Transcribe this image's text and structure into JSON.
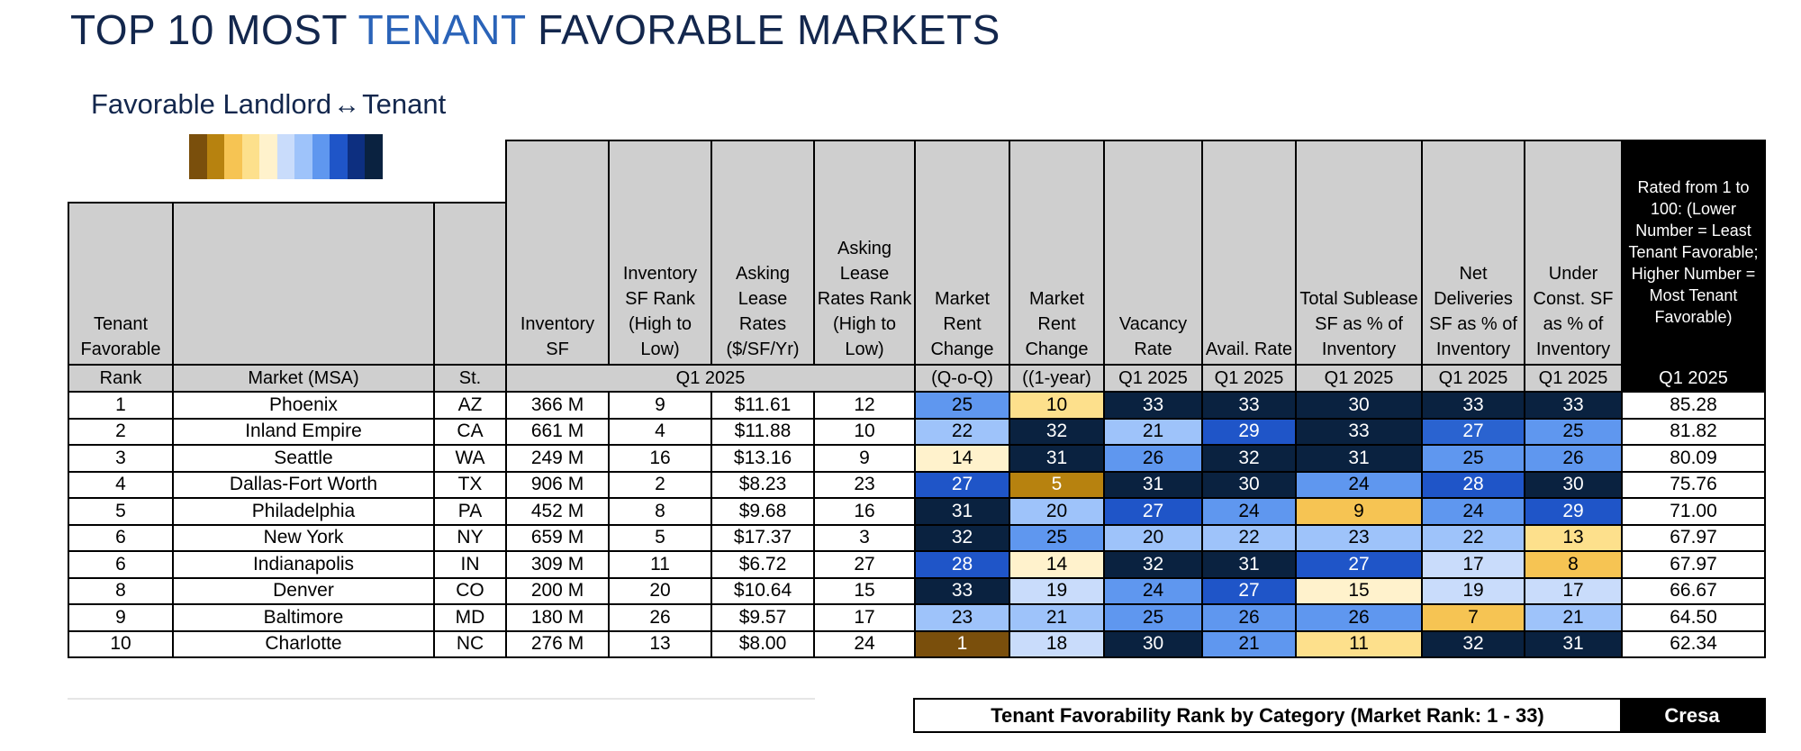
{
  "title": {
    "part1": "TOP 10 MOST ",
    "accent": "TENANT",
    "part2": " FAVORABLE MARKETS"
  },
  "legend": {
    "left": "Favorable Landlord",
    "arrow": "↔",
    "right": "Tenant",
    "scale_colors": [
      "#7a4f0c",
      "#b7820f",
      "#f6c453",
      "#fde08c",
      "#fff2cc",
      "#c9dcfb",
      "#9ec3fa",
      "#5f97ef",
      "#1f55c8",
      "#0d2f80",
      "#0a2240"
    ]
  },
  "colors": {
    "header_gray": "#cfcfcf",
    "header_black": "#000000",
    "title_navy": "#13274d",
    "title_accent": "#2a63b8"
  },
  "headers": {
    "rank": "Tenant Favorable",
    "rank_sub": "Rank",
    "market": "Market (MSA)",
    "state": "St.",
    "inventory": "Inventory SF",
    "inv_rank": "Inventory SF Rank (High to Low)",
    "asking": "Asking Lease Rates ($/SF/Yr)",
    "asking_rank": "Asking Lease Rates Rank (High to Low)",
    "rent_qoq": "Market Rent Change",
    "rent_yoy": "Market Rent Change",
    "vacancy": "Vacancy Rate",
    "avail": "Avail. Rate",
    "sublease": "Total Sublease SF as % of Inventory",
    "deliveries": "Net Deliveries SF as % of Inventory",
    "construction": "Under Const. SF as % of Inventory",
    "rated": "Rated from 1 to 100: (Lower Number = Least Tenant Favorable; Higher Number = Most Tenant Favorable)",
    "period_group": "Q1 2025",
    "qoq": "(Q-o-Q)",
    "yoy": "((1-year)",
    "q1": "Q1 2025"
  },
  "rows": [
    {
      "rank": "1",
      "market": "Phoenix",
      "st": "AZ",
      "inv": "366 M",
      "inv_rank": "9",
      "rate": "$11.61",
      "rate_rank": "12",
      "cells": [
        {
          "v": "25",
          "c": "#5f97ef",
          "t": "#000"
        },
        {
          "v": "10",
          "c": "#fde08c",
          "t": "#000"
        },
        {
          "v": "33",
          "c": "#0a2240",
          "t": "#fff"
        },
        {
          "v": "33",
          "c": "#0a2240",
          "t": "#fff"
        },
        {
          "v": "30",
          "c": "#0a2240",
          "t": "#fff"
        },
        {
          "v": "33",
          "c": "#0a2240",
          "t": "#fff"
        },
        {
          "v": "33",
          "c": "#0a2240",
          "t": "#fff"
        }
      ],
      "score": "85.28"
    },
    {
      "rank": "2",
      "market": "Inland Empire",
      "st": "CA",
      "inv": "661 M",
      "inv_rank": "4",
      "rate": "$11.88",
      "rate_rank": "10",
      "cells": [
        {
          "v": "22",
          "c": "#9ec3fa",
          "t": "#000"
        },
        {
          "v": "32",
          "c": "#0a2240",
          "t": "#fff"
        },
        {
          "v": "21",
          "c": "#9ec3fa",
          "t": "#000"
        },
        {
          "v": "29",
          "c": "#1f55c8",
          "t": "#fff"
        },
        {
          "v": "33",
          "c": "#0a2240",
          "t": "#fff"
        },
        {
          "v": "27",
          "c": "#2a63d0",
          "t": "#fff"
        },
        {
          "v": "25",
          "c": "#5f97ef",
          "t": "#000"
        }
      ],
      "score": "81.82"
    },
    {
      "rank": "3",
      "market": "Seattle",
      "st": "WA",
      "inv": "249 M",
      "inv_rank": "16",
      "rate": "$13.16",
      "rate_rank": "9",
      "cells": [
        {
          "v": "14",
          "c": "#fff2cc",
          "t": "#000"
        },
        {
          "v": "31",
          "c": "#0a2240",
          "t": "#fff"
        },
        {
          "v": "26",
          "c": "#5f97ef",
          "t": "#000"
        },
        {
          "v": "32",
          "c": "#0a2240",
          "t": "#fff"
        },
        {
          "v": "31",
          "c": "#0a2240",
          "t": "#fff"
        },
        {
          "v": "25",
          "c": "#5f97ef",
          "t": "#000"
        },
        {
          "v": "26",
          "c": "#5f97ef",
          "t": "#000"
        }
      ],
      "score": "80.09"
    },
    {
      "rank": "4",
      "market": "Dallas-Fort Worth",
      "st": "TX",
      "inv": "906 M",
      "inv_rank": "2",
      "rate": "$8.23",
      "rate_rank": "23",
      "cells": [
        {
          "v": "27",
          "c": "#1f55c8",
          "t": "#fff"
        },
        {
          "v": "5",
          "c": "#b7820f",
          "t": "#fff"
        },
        {
          "v": "31",
          "c": "#0a2240",
          "t": "#fff"
        },
        {
          "v": "30",
          "c": "#0a2240",
          "t": "#fff"
        },
        {
          "v": "24",
          "c": "#5f97ef",
          "t": "#000"
        },
        {
          "v": "28",
          "c": "#1f55c8",
          "t": "#fff"
        },
        {
          "v": "30",
          "c": "#0a2240",
          "t": "#fff"
        }
      ],
      "score": "75.76"
    },
    {
      "rank": "5",
      "market": "Philadelphia",
      "st": "PA",
      "inv": "452 M",
      "inv_rank": "8",
      "rate": "$9.68",
      "rate_rank": "16",
      "cells": [
        {
          "v": "31",
          "c": "#0a2240",
          "t": "#fff"
        },
        {
          "v": "20",
          "c": "#9ec3fa",
          "t": "#000"
        },
        {
          "v": "27",
          "c": "#1f55c8",
          "t": "#fff"
        },
        {
          "v": "24",
          "c": "#5f97ef",
          "t": "#000"
        },
        {
          "v": "9",
          "c": "#f6c453",
          "t": "#000"
        },
        {
          "v": "24",
          "c": "#5f97ef",
          "t": "#000"
        },
        {
          "v": "29",
          "c": "#1f55c8",
          "t": "#fff"
        }
      ],
      "score": "71.00"
    },
    {
      "rank": "6",
      "market": "New York",
      "st": "NY",
      "inv": "659 M",
      "inv_rank": "5",
      "rate": "$17.37",
      "rate_rank": "3",
      "cells": [
        {
          "v": "32",
          "c": "#0a2240",
          "t": "#fff"
        },
        {
          "v": "25",
          "c": "#5f97ef",
          "t": "#000"
        },
        {
          "v": "20",
          "c": "#9ec3fa",
          "t": "#000"
        },
        {
          "v": "22",
          "c": "#9ec3fa",
          "t": "#000"
        },
        {
          "v": "23",
          "c": "#9ec3fa",
          "t": "#000"
        },
        {
          "v": "22",
          "c": "#9ec3fa",
          "t": "#000"
        },
        {
          "v": "13",
          "c": "#fde08c",
          "t": "#000"
        }
      ],
      "score": "67.97"
    },
    {
      "rank": "6",
      "market": "Indianapolis",
      "st": "IN",
      "inv": "309 M",
      "inv_rank": "11",
      "rate": "$6.72",
      "rate_rank": "27",
      "cells": [
        {
          "v": "28",
          "c": "#1f55c8",
          "t": "#fff"
        },
        {
          "v": "14",
          "c": "#fff2cc",
          "t": "#000"
        },
        {
          "v": "32",
          "c": "#0a2240",
          "t": "#fff"
        },
        {
          "v": "31",
          "c": "#0a2240",
          "t": "#fff"
        },
        {
          "v": "27",
          "c": "#1f55c8",
          "t": "#fff"
        },
        {
          "v": "17",
          "c": "#c9dcfb",
          "t": "#000"
        },
        {
          "v": "8",
          "c": "#f6c453",
          "t": "#000"
        }
      ],
      "score": "67.97"
    },
    {
      "rank": "8",
      "market": "Denver",
      "st": "CO",
      "inv": "200 M",
      "inv_rank": "20",
      "rate": "$10.64",
      "rate_rank": "15",
      "cells": [
        {
          "v": "33",
          "c": "#0a2240",
          "t": "#fff"
        },
        {
          "v": "19",
          "c": "#c9dcfb",
          "t": "#000"
        },
        {
          "v": "24",
          "c": "#5f97ef",
          "t": "#000"
        },
        {
          "v": "27",
          "c": "#1f55c8",
          "t": "#fff"
        },
        {
          "v": "15",
          "c": "#fff2cc",
          "t": "#000"
        },
        {
          "v": "19",
          "c": "#c9dcfb",
          "t": "#000"
        },
        {
          "v": "17",
          "c": "#c9dcfb",
          "t": "#000"
        }
      ],
      "score": "66.67"
    },
    {
      "rank": "9",
      "market": "Baltimore",
      "st": "MD",
      "inv": "180 M",
      "inv_rank": "26",
      "rate": "$9.57",
      "rate_rank": "17",
      "cells": [
        {
          "v": "23",
          "c": "#9ec3fa",
          "t": "#000"
        },
        {
          "v": "21",
          "c": "#9ec3fa",
          "t": "#000"
        },
        {
          "v": "25",
          "c": "#5f97ef",
          "t": "#000"
        },
        {
          "v": "26",
          "c": "#5f97ef",
          "t": "#000"
        },
        {
          "v": "26",
          "c": "#5f97ef",
          "t": "#000"
        },
        {
          "v": "7",
          "c": "#f6c453",
          "t": "#000"
        },
        {
          "v": "21",
          "c": "#9ec3fa",
          "t": "#000"
        }
      ],
      "score": "64.50"
    },
    {
      "rank": "10",
      "market": "Charlotte",
      "st": "NC",
      "inv": "276 M",
      "inv_rank": "13",
      "rate": "$8.00",
      "rate_rank": "24",
      "cells": [
        {
          "v": "1",
          "c": "#7a4f0c",
          "t": "#fff"
        },
        {
          "v": "18",
          "c": "#c9dcfb",
          "t": "#000"
        },
        {
          "v": "30",
          "c": "#0a2240",
          "t": "#fff"
        },
        {
          "v": "21",
          "c": "#5f97ef",
          "t": "#000"
        },
        {
          "v": "11",
          "c": "#fde08c",
          "t": "#000"
        },
        {
          "v": "32",
          "c": "#0a2240",
          "t": "#fff"
        },
        {
          "v": "31",
          "c": "#0a2240",
          "t": "#fff"
        }
      ],
      "score": "62.34"
    }
  ],
  "footer": {
    "category_label": "Tenant Favorability Rank by Category (Market Rank: 1 - 33)",
    "brand": "Cresa"
  }
}
